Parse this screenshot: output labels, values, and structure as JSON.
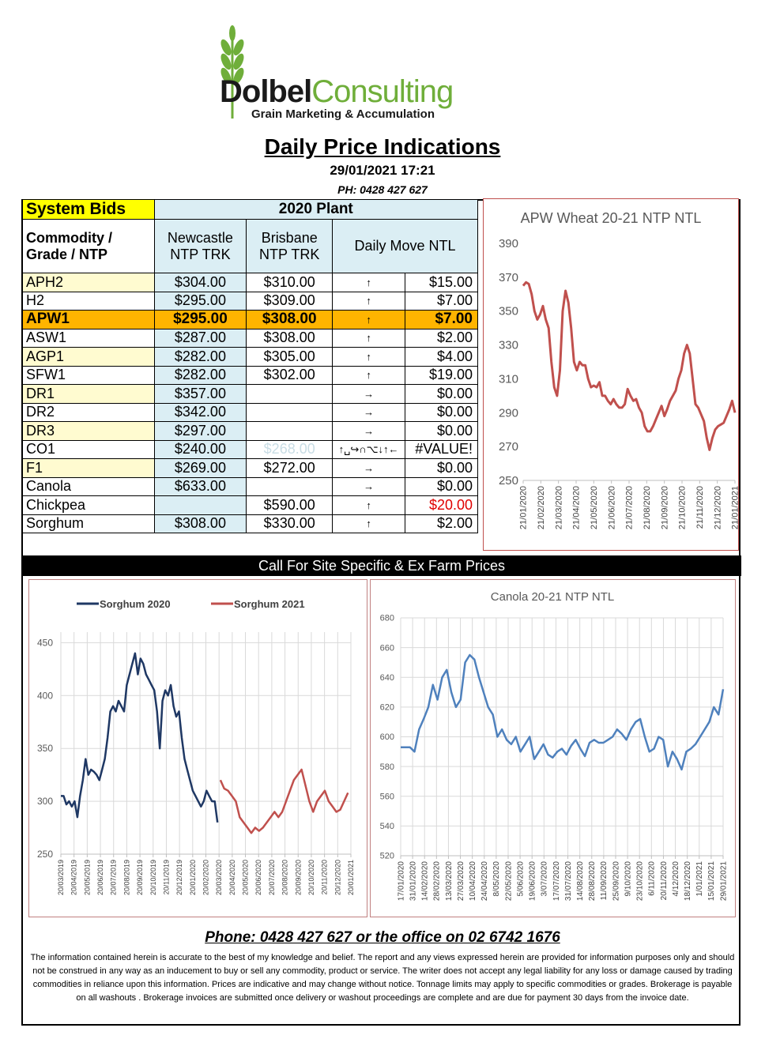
{
  "header": {
    "brand_dark": "Dolbel",
    "brand_light": "Consulting",
    "tagline": "Grain Marketing & Accumulation",
    "title": "Daily Price Indications",
    "datetime": "29/01/2021 17:21",
    "phone": "PH: 0428 427 627"
  },
  "table": {
    "system_bids": "System Bids",
    "plant": "2020 Plant",
    "col_commodity": "Commodity / Grade / NTP",
    "col_newcastle": "Newcastle NTP TRK",
    "col_brisbane": "Brisbane NTP TRK",
    "col_move": "Daily  Move NTL",
    "rows": [
      {
        "grade": "APH2",
        "newcastle": "$304.00",
        "brisbane": "$310.00",
        "arrow": "↑",
        "move": "$15.00"
      },
      {
        "grade": "H2",
        "newcastle": "$295.00",
        "brisbane": "$309.00",
        "arrow": "↑",
        "move": "$7.00"
      },
      {
        "grade": "APW1",
        "newcastle": "$295.00",
        "brisbane": "$308.00",
        "arrow": "↑",
        "move": "$7.00"
      },
      {
        "grade": "ASW1",
        "newcastle": "$287.00",
        "brisbane": "$308.00",
        "arrow": "↑",
        "move": "$2.00"
      },
      {
        "grade": "AGP1",
        "newcastle": "$282.00",
        "brisbane": "$305.00",
        "arrow": "↑",
        "move": "$4.00"
      },
      {
        "grade": "SFW1",
        "newcastle": "$282.00",
        "brisbane": "$302.00",
        "arrow": "↑",
        "move": "$19.00"
      },
      {
        "grade": "DR1",
        "newcastle": "$357.00",
        "brisbane": "",
        "arrow": "→",
        "move": "$0.00"
      },
      {
        "grade": "DR2",
        "newcastle": "$342.00",
        "brisbane": "",
        "arrow": "→",
        "move": "$0.00"
      },
      {
        "grade": "DR3",
        "newcastle": "$297.00",
        "brisbane": "",
        "arrow": "→",
        "move": "$0.00"
      },
      {
        "grade": "CO1",
        "newcastle": "$240.00",
        "brisbane": "$268.00",
        "arrow": "↑␣↪∩⌥↓↑←",
        "move": "#VALUE!"
      },
      {
        "grade": "F1",
        "newcastle": "$269.00",
        "brisbane": "$272.00",
        "arrow": "→",
        "move": "$0.00"
      },
      {
        "grade": "Canola",
        "newcastle": "$633.00",
        "brisbane": "",
        "arrow": "→",
        "move": "$0.00"
      },
      {
        "grade": "Chickpea",
        "newcastle": "",
        "brisbane": "$590.00",
        "arrow": "↑",
        "move": "$20.00"
      },
      {
        "grade": "Sorghum",
        "newcastle": "$308.00",
        "brisbane": "$330.00",
        "arrow": "↑",
        "move": "$2.00"
      }
    ]
  },
  "banner": "Call For Site Specific & Ex Farm Prices",
  "footer": {
    "phone": "Phone: 0428 427 627 or the office on 02 6742 1676",
    "disclaimer": "The information contained herein is accurate to the best of my knowledge and belief.  The report and any views expressed herein are provided for information purposes only and should not be construed in any way as an inducement to buy or sell any commodity, product or service. The writer does not accept any legal liability for any loss or damage caused by trading commodities in reliance upon this information. Prices are indicative and may change without notice. Tonnage limits may apply to specific commodities or grades.  Brokerage is payable on all washouts . Brokerage invoices are submitted once delivery or washout proceedings are complete and are due for payment 30 days from the invoice date."
  },
  "colors": {
    "red_series": "#c0504d",
    "navy_series": "#1f3864",
    "blue_series": "#4f81bd",
    "apw_highlight": "#ffb400"
  },
  "chart_data": [
    {
      "type": "line",
      "title": "APW Wheat 20-21 NTP NTL",
      "ylim": [
        250,
        390
      ],
      "yticks": [
        250,
        270,
        290,
        310,
        330,
        350,
        370,
        390
      ],
      "grid": false,
      "xticklabels": [
        "21/01/2020",
        "21/02/2020",
        "21/03/2020",
        "21/04/2020",
        "21/05/2020",
        "21/06/2020",
        "21/07/2020",
        "21/08/2020",
        "21/09/2020",
        "21/10/2020",
        "21/11/2020",
        "21/12/2020",
        "21/01/2021"
      ],
      "series": [
        {
          "color": "#c0504d",
          "values": [
            365,
            367,
            366,
            360,
            350,
            345,
            348,
            353,
            345,
            340,
            320,
            305,
            300,
            315,
            350,
            362,
            355,
            340,
            320,
            315,
            320,
            318,
            318,
            310,
            305,
            306,
            305,
            308,
            300,
            300,
            297,
            295,
            298,
            295,
            293,
            293,
            295,
            304,
            300,
            297,
            298,
            293,
            290,
            282,
            279,
            279,
            282,
            286,
            290,
            294,
            288,
            292,
            297,
            300,
            303,
            310,
            315,
            325,
            330,
            325,
            310,
            295,
            293,
            289,
            285,
            275,
            268,
            275,
            280,
            282,
            283,
            284,
            288,
            292,
            297,
            290
          ]
        }
      ]
    },
    {
      "type": "line",
      "ylim": [
        250,
        460
      ],
      "yticks": [
        250,
        300,
        350,
        400,
        450
      ],
      "grid": true,
      "legend": "top",
      "xticklabels": [
        "20/03/2019",
        "20/04/2019",
        "20/05/2019",
        "20/06/2019",
        "20/07/2019",
        "20/08/2019",
        "20/09/2019",
        "20/10/2019",
        "20/11/2019",
        "20/12/2019",
        "20/01/2020",
        "20/02/2020",
        "20/03/2020",
        "20/04/2020",
        "20/05/2020",
        "20/06/2020",
        "20/07/2020",
        "20/08/2020",
        "20/09/2020",
        "20/10/2020",
        "20/11/2020",
        "20/12/2020",
        "20/01/2021"
      ],
      "series": [
        {
          "name": "Sorghum 2020",
          "color": "#1f3864",
          "values": [
            305,
            305,
            297,
            300,
            295,
            300,
            285,
            305,
            320,
            340,
            325,
            330,
            328,
            325,
            320,
            330,
            340,
            360,
            385,
            390,
            385,
            395,
            390,
            385,
            410,
            420,
            430,
            440,
            420,
            435,
            430,
            420,
            415,
            410,
            405,
            385,
            350,
            395,
            405,
            400,
            410,
            390,
            380,
            385,
            360,
            340,
            330,
            320,
            310,
            305,
            300,
            295,
            300,
            310,
            305,
            300,
            300,
            280
          ]
        },
        {
          "name": "Sorghum 2021",
          "color": "#c0504d",
          "values": [
            320,
            312,
            310,
            305,
            300,
            285,
            280,
            275,
            270,
            275,
            272,
            275,
            280,
            285,
            290,
            285,
            290,
            300,
            310,
            320,
            325,
            330,
            315,
            300,
            290,
            300,
            305,
            310,
            300,
            295,
            290,
            292,
            300,
            308
          ]
        }
      ]
    },
    {
      "type": "line",
      "title": "Canola 20-21 NTP NTL",
      "ylim": [
        520,
        680
      ],
      "yticks": [
        520,
        540,
        560,
        580,
        600,
        620,
        640,
        660,
        680
      ],
      "grid": true,
      "xticklabels": [
        "17/01/2020",
        "31/01/2020",
        "14/02/2020",
        "28/02/2020",
        "13/03/2020",
        "27/03/2020",
        "10/04/2020",
        "24/04/2020",
        "8/05/2020",
        "22/05/2020",
        "5/06/2020",
        "19/06/2020",
        "3/07/2020",
        "17/07/2020",
        "31/07/2020",
        "14/08/2020",
        "28/08/2020",
        "11/09/2020",
        "25/09/2020",
        "9/10/2020",
        "23/10/2020",
        "6/11/2020",
        "20/11/2020",
        "4/12/2020",
        "18/12/2020",
        "1/01/2021",
        "15/01/2021",
        "29/01/2021"
      ],
      "series": [
        {
          "color": "#4f81bd",
          "values": [
            593,
            593,
            593,
            590,
            605,
            612,
            620,
            635,
            625,
            640,
            645,
            630,
            620,
            625,
            650,
            655,
            652,
            640,
            630,
            620,
            615,
            600,
            605,
            598,
            595,
            600,
            590,
            595,
            600,
            585,
            590,
            595,
            588,
            586,
            590,
            592,
            588,
            594,
            598,
            592,
            587,
            596,
            598,
            596,
            596,
            598,
            600,
            605,
            602,
            598,
            605,
            610,
            612,
            600,
            590,
            592,
            600,
            598,
            580,
            590,
            585,
            578,
            590,
            592,
            595,
            600,
            605,
            610,
            620,
            615,
            632
          ]
        }
      ]
    }
  ]
}
